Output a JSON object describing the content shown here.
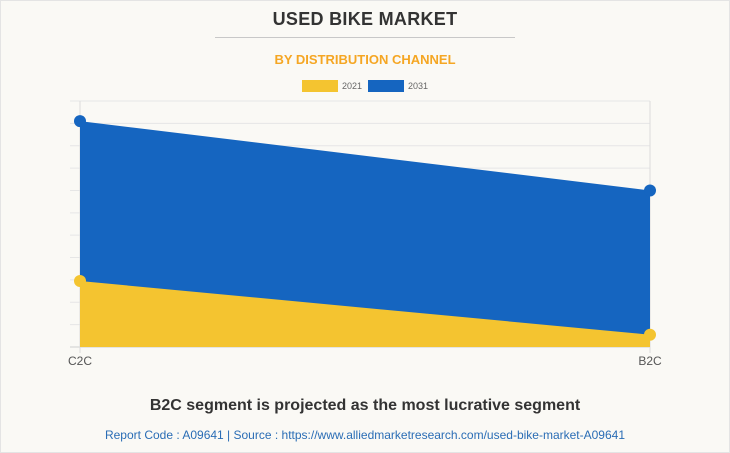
{
  "header": {
    "title": "USED BIKE MARKET",
    "subtitle": "BY DISTRIBUTION CHANNEL"
  },
  "footer": {
    "headline": "B2C segment is projected as the most lucrative segment",
    "source": "Report Code : A09641  |  Source : https://www.alliedmarketresearch.com/used-bike-market-A09641"
  },
  "chart_data": {
    "type": "area",
    "title": "USED BIKE MARKET",
    "subtitle": "BY DISTRIBUTION CHANNEL",
    "categories": [
      "C2C",
      "B2C"
    ],
    "series": [
      {
        "name": "2021",
        "color": "#f4c430",
        "values": [
          2.95,
          0.55
        ]
      },
      {
        "name": "2031",
        "color": "#1565c0",
        "values": [
          10.1,
          7.0
        ]
      }
    ],
    "xlabel": "",
    "ylabel": "",
    "ylim": [
      0,
      11
    ],
    "y_tick_labels_shown": false,
    "grid": true,
    "legend": "top-center"
  }
}
